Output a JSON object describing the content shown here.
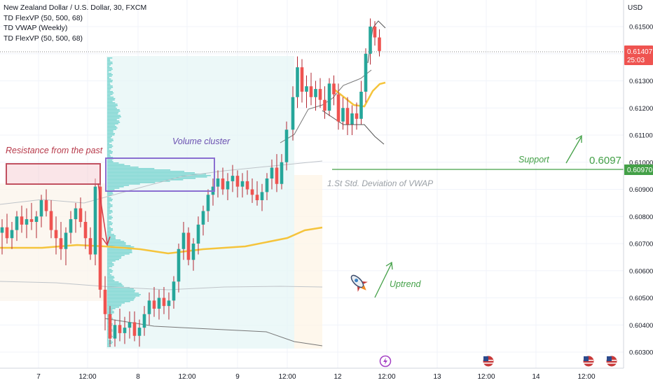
{
  "instrument": {
    "title": "New Zealand Dollar / U.S. Dollar, 30, FXCM"
  },
  "indicators": [
    "TD FlexVP (50, 500, 68)",
    "TD VWAP (Weekly)",
    "TD FlexVP (50, 500, 68)"
  ],
  "price_scale": {
    "currency": "USD",
    "ticks": [
      "0.61500",
      "0.61400",
      "0.61300",
      "0.61200",
      "0.61100",
      "0.61000",
      "0.60900",
      "0.60800",
      "0.60700",
      "0.60600",
      "0.60500",
      "0.60400",
      "0.60300"
    ],
    "last_price": "0.61407",
    "countdown": "25:03",
    "support_price_label": "0.60970"
  },
  "time_scale": {
    "ticks": [
      "7",
      "12:00",
      "8",
      "12:00",
      "9",
      "12:00",
      "12",
      "12:00",
      "13",
      "12:00",
      "14",
      "12:00"
    ]
  },
  "annotations": {
    "resistance": "Resistance from the past",
    "volume_cluster": "Volume cluster",
    "support": "Support",
    "support_level": "0.6097",
    "std_dev": "1.St Std. Deviation of VWAP",
    "uptrend": "Uptrend"
  },
  "colors": {
    "up": "#26a69a",
    "down": "#ef5350",
    "candle_body": "#ef5350",
    "wick": "#b22833",
    "vwap": "#f5c43c",
    "volume_profile": "#7fd6d2",
    "support_line": "#43a047",
    "annotation_red": "#b73a4a",
    "annotation_purple": "#6a4fb0",
    "annotation_gray": "#9aa0a6"
  },
  "chart_data": {
    "type": "candlestick",
    "title": "New Zealand Dollar / U.S. Dollar, 30, FXCM",
    "ylabel": "USD",
    "ylim": [
      0.6025,
      0.6158
    ],
    "series": [
      {
        "values": [
          [
            0.6074,
            0.6079,
            0.6066,
            0.6076
          ],
          [
            0.6076,
            0.6081,
            0.607,
            0.6072
          ],
          [
            0.6072,
            0.6078,
            0.6068,
            0.6075
          ],
          [
            0.6075,
            0.6082,
            0.6071,
            0.608
          ],
          [
            0.608,
            0.6084,
            0.6074,
            0.6077
          ],
          [
            0.6077,
            0.6083,
            0.6072,
            0.6079
          ],
          [
            0.6079,
            0.6085,
            0.6075,
            0.6078
          ],
          [
            0.6078,
            0.6082,
            0.6072,
            0.608
          ],
          [
            0.608,
            0.6088,
            0.6076,
            0.6086
          ],
          [
            0.6086,
            0.609,
            0.608,
            0.6082
          ],
          [
            0.6082,
            0.6086,
            0.6072,
            0.6075
          ],
          [
            0.6075,
            0.608,
            0.6066,
            0.6072
          ],
          [
            0.6072,
            0.6078,
            0.6064,
            0.6068
          ],
          [
            0.6068,
            0.6076,
            0.6062,
            0.6074
          ],
          [
            0.6074,
            0.6082,
            0.607,
            0.6079
          ],
          [
            0.6079,
            0.6085,
            0.6074,
            0.6083
          ],
          [
            0.6083,
            0.6087,
            0.6076,
            0.6078
          ],
          [
            0.6078,
            0.6082,
            0.6068,
            0.6072
          ],
          [
            0.6072,
            0.6076,
            0.6064,
            0.6066
          ],
          [
            0.6066,
            0.6094,
            0.6062,
            0.6091
          ],
          [
            0.6091,
            0.6094,
            0.605,
            0.6053
          ],
          [
            0.6053,
            0.6058,
            0.6038,
            0.6044
          ],
          [
            0.6044,
            0.6047,
            0.6032,
            0.6035
          ],
          [
            0.6035,
            0.6042,
            0.6032,
            0.604
          ],
          [
            0.604,
            0.6046,
            0.6034,
            0.6037
          ],
          [
            0.6037,
            0.6043,
            0.6033,
            0.6039
          ],
          [
            0.6039,
            0.6045,
            0.6035,
            0.6041
          ],
          [
            0.6041,
            0.6045,
            0.6034,
            0.6036
          ],
          [
            0.6036,
            0.6042,
            0.6032,
            0.6039
          ],
          [
            0.6039,
            0.6047,
            0.6036,
            0.6044
          ],
          [
            0.6044,
            0.6052,
            0.604,
            0.6049
          ],
          [
            0.6049,
            0.6054,
            0.6043,
            0.6046
          ],
          [
            0.6046,
            0.6053,
            0.6042,
            0.605
          ],
          [
            0.605,
            0.6054,
            0.6044,
            0.6047
          ],
          [
            0.6047,
            0.6052,
            0.6042,
            0.6049
          ],
          [
            0.6049,
            0.6058,
            0.6046,
            0.6056
          ],
          [
            0.6056,
            0.607,
            0.6052,
            0.6068
          ],
          [
            0.6068,
            0.6078,
            0.6064,
            0.6074
          ],
          [
            0.6074,
            0.6076,
            0.6062,
            0.6064
          ],
          [
            0.6064,
            0.6072,
            0.606,
            0.607
          ],
          [
            0.607,
            0.608,
            0.6066,
            0.6077
          ],
          [
            0.6077,
            0.6084,
            0.6073,
            0.6082
          ],
          [
            0.6082,
            0.609,
            0.6078,
            0.6088
          ],
          [
            0.6088,
            0.6094,
            0.6084,
            0.6091
          ],
          [
            0.6091,
            0.6097,
            0.6087,
            0.6094
          ],
          [
            0.6094,
            0.6098,
            0.6088,
            0.609
          ],
          [
            0.609,
            0.6096,
            0.6086,
            0.6093
          ],
          [
            0.6093,
            0.6099,
            0.6089,
            0.6095
          ],
          [
            0.6095,
            0.6097,
            0.6087,
            0.6091
          ],
          [
            0.6091,
            0.6096,
            0.6087,
            0.6093
          ],
          [
            0.6093,
            0.6097,
            0.6088,
            0.609
          ],
          [
            0.609,
            0.6094,
            0.6085,
            0.6088
          ],
          [
            0.6088,
            0.6093,
            0.6084,
            0.6086
          ],
          [
            0.6086,
            0.6092,
            0.6082,
            0.6089
          ],
          [
            0.6089,
            0.6096,
            0.6086,
            0.6094
          ],
          [
            0.6094,
            0.6101,
            0.609,
            0.6098
          ],
          [
            0.6098,
            0.6103,
            0.6089,
            0.6092
          ],
          [
            0.6092,
            0.6103,
            0.609,
            0.61
          ],
          [
            0.61,
            0.6115,
            0.6097,
            0.6112
          ],
          [
            0.6112,
            0.6128,
            0.6108,
            0.6124
          ],
          [
            0.6124,
            0.6139,
            0.612,
            0.6135
          ],
          [
            0.6135,
            0.6138,
            0.6122,
            0.6126
          ],
          [
            0.6126,
            0.6132,
            0.612,
            0.6128
          ],
          [
            0.6128,
            0.6133,
            0.6121,
            0.6124
          ],
          [
            0.6124,
            0.613,
            0.6119,
            0.6127
          ],
          [
            0.6127,
            0.6131,
            0.612,
            0.6123
          ],
          [
            0.6123,
            0.6128,
            0.6116,
            0.6119
          ],
          [
            0.6119,
            0.6131,
            0.6117,
            0.6129
          ],
          [
            0.6129,
            0.6132,
            0.6121,
            0.6125
          ],
          [
            0.6125,
            0.6129,
            0.6112,
            0.6115
          ],
          [
            0.6115,
            0.6124,
            0.6112,
            0.612
          ],
          [
            0.612,
            0.6124,
            0.611,
            0.6114
          ],
          [
            0.6114,
            0.6121,
            0.611,
            0.6118
          ],
          [
            0.6118,
            0.6122,
            0.6112,
            0.6116
          ],
          [
            0.6116,
            0.613,
            0.6114,
            0.6126
          ],
          [
            0.6126,
            0.6142,
            0.6122,
            0.614
          ],
          [
            0.614,
            0.6153,
            0.6136,
            0.615
          ],
          [
            0.615,
            0.6152,
            0.6143,
            0.6146
          ],
          [
            0.6146,
            0.6149,
            0.6139,
            0.6141
          ]
        ]
      }
    ]
  }
}
